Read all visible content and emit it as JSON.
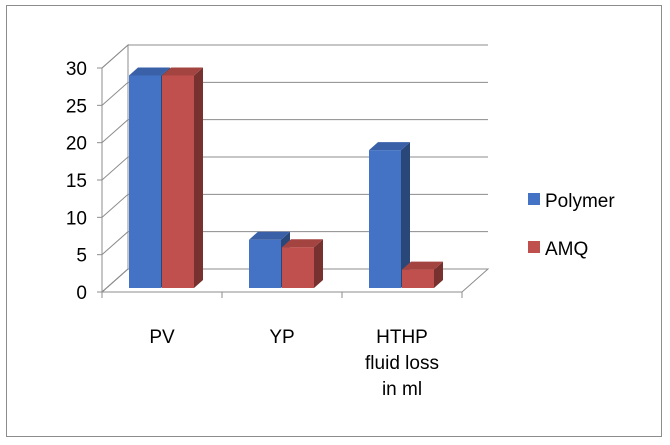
{
  "chart_data": {
    "type": "bar",
    "subtype": "3d-clustered-column",
    "title": "",
    "xlabel": "",
    "ylabel": "",
    "categories": [
      "PV",
      "YP",
      "HTHP fluid loss in ml"
    ],
    "category_lines": [
      [
        "PV"
      ],
      [
        "YP"
      ],
      [
        "HTHP",
        "fluid loss",
        "in ml"
      ]
    ],
    "series": [
      {
        "name": "Polymer",
        "values": [
          29,
          7,
          19
        ],
        "color": "#4472c4"
      },
      {
        "name": "AMQ",
        "values": [
          29,
          6,
          3
        ],
        "color": "#c0504d"
      }
    ],
    "ylim": [
      0,
      30
    ],
    "yticks": [
      0,
      5,
      10,
      15,
      20,
      25,
      30
    ],
    "grid": true,
    "legend": "right"
  }
}
